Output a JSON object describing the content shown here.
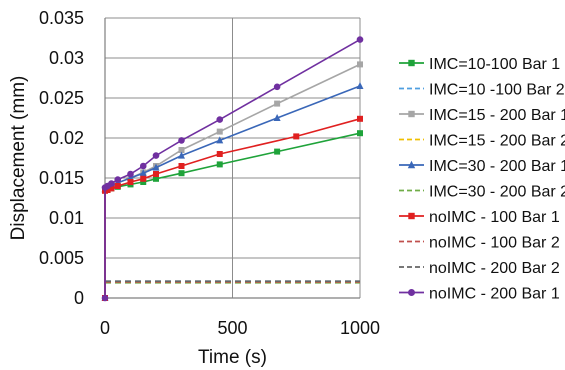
{
  "chart_data": {
    "type": "line",
    "title": "",
    "xlabel": "Time (s)",
    "ylabel": "Displacement (mm)",
    "xlim": [
      0,
      1000
    ],
    "ylim": [
      0,
      0.035
    ],
    "xticks": [
      0,
      500,
      1000
    ],
    "yticks": [
      0,
      0.005,
      0.01,
      0.015,
      0.02,
      0.025,
      0.03,
      0.035
    ],
    "xtick_labels": [
      "0",
      "500",
      "1000"
    ],
    "ytick_labels": [
      "0",
      "0.005",
      "0.01",
      "0.015",
      "0.02",
      "0.025",
      "0.03",
      "0.035"
    ],
    "grid": true,
    "legend_position": "right",
    "series": [
      {
        "name": "IMC=10-100 Bar 1",
        "color": "#1fa33a",
        "style": "solid",
        "marker": "square",
        "x": [
          0,
          0,
          10,
          25,
          50,
          100,
          150,
          200,
          300,
          450,
          675,
          1000
        ],
        "y": [
          0,
          0.0135,
          0.0136,
          0.0137,
          0.0139,
          0.0142,
          0.0145,
          0.0149,
          0.0156,
          0.0167,
          0.0183,
          0.0206
        ]
      },
      {
        "name": "IMC=10 -100 Bar 2",
        "color": "#4f9fe0",
        "style": "dashed",
        "marker": "none",
        "x": [
          0,
          1000
        ],
        "y": [
          0.0021,
          0.0021
        ]
      },
      {
        "name": "IMC=15 - 200 Bar 1",
        "color": "#a6a6a6",
        "style": "solid",
        "marker": "square",
        "x": [
          0,
          0,
          10,
          25,
          50,
          100,
          150,
          200,
          300,
          450,
          675,
          1000
        ],
        "y": [
          0,
          0.0136,
          0.0138,
          0.014,
          0.0144,
          0.015,
          0.0157,
          0.0165,
          0.0185,
          0.0208,
          0.0243,
          0.0292
        ]
      },
      {
        "name": "IMC=15 - 200 Bar 2",
        "color": "#f0c000",
        "style": "dashed",
        "marker": "none",
        "x": [
          0,
          1000
        ],
        "y": [
          0.002,
          0.002
        ]
      },
      {
        "name": "IMC=30 - 200 Bar 1",
        "color": "#3a67b8",
        "style": "solid",
        "marker": "triangle",
        "x": [
          0,
          0,
          10,
          25,
          50,
          100,
          150,
          200,
          300,
          450,
          675,
          1000
        ],
        "y": [
          0,
          0.0136,
          0.0138,
          0.014,
          0.0144,
          0.015,
          0.0156,
          0.0163,
          0.0178,
          0.0197,
          0.0225,
          0.0265
        ]
      },
      {
        "name": "IMC=30 - 200 Bar 2",
        "color": "#70ad47",
        "style": "dashed",
        "marker": "none",
        "x": [
          0,
          1000
        ],
        "y": [
          0.0019,
          0.0019
        ]
      },
      {
        "name": "noIMC - 100 Bar 1",
        "color": "#e02020",
        "style": "solid",
        "marker": "square",
        "x": [
          0,
          0,
          10,
          25,
          50,
          100,
          150,
          200,
          300,
          450,
          750,
          1000
        ],
        "y": [
          0,
          0.0134,
          0.0135,
          0.0137,
          0.014,
          0.0145,
          0.0149,
          0.0155,
          0.0165,
          0.018,
          0.0202,
          0.0224
        ]
      },
      {
        "name": "noIMC - 100 Bar 2",
        "color": "#c0504d",
        "style": "dashed",
        "marker": "none",
        "x": [
          0,
          1000
        ],
        "y": [
          0.002,
          0.002
        ]
      },
      {
        "name": "noIMC - 200 Bar 2",
        "color": "#666666",
        "style": "dashed",
        "marker": "none",
        "x": [
          0,
          1000
        ],
        "y": [
          0.0021,
          0.0021
        ]
      },
      {
        "name": "noIMC - 200 Bar 1",
        "color": "#7030a0",
        "style": "solid",
        "marker": "circle",
        "x": [
          0,
          0,
          10,
          25,
          50,
          100,
          150,
          200,
          300,
          450,
          675,
          1000
        ],
        "y": [
          0,
          0.0138,
          0.014,
          0.0143,
          0.0148,
          0.0155,
          0.0165,
          0.0178,
          0.0197,
          0.0223,
          0.0264,
          0.0323
        ]
      }
    ]
  }
}
